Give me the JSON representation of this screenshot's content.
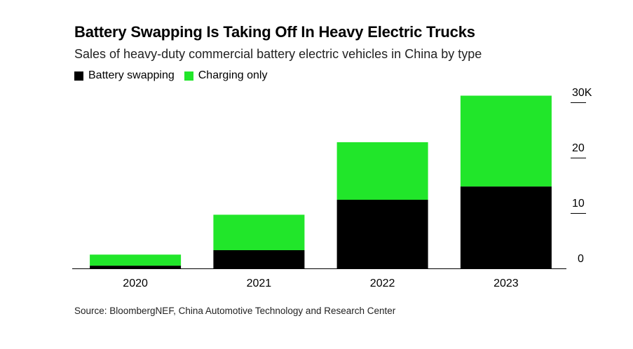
{
  "title": "Battery Swapping Is Taking Off In Heavy Electric Trucks",
  "subtitle": "Sales of heavy-duty commercial battery electric vehicles in China by type",
  "source": "Source: BloombergNEF, China Automotive Technology and Research Center",
  "colors": {
    "battery_swapping": "#000000",
    "charging_only": "#21e62a"
  },
  "chart_data": {
    "type": "bar",
    "stacked": true,
    "categories": [
      "2020",
      "2021",
      "2022",
      "2023"
    ],
    "series": [
      {
        "name": "Battery swapping",
        "values": [
          0.5,
          3.3,
          12.4,
          14.8
        ]
      },
      {
        "name": "Charging only",
        "values": [
          2.0,
          6.4,
          10.4,
          16.4
        ]
      }
    ],
    "ylim": [
      0,
      30
    ],
    "yticks": [
      0,
      10,
      20,
      30
    ],
    "ytick_labels": [
      "0",
      "10",
      "20",
      "30K"
    ],
    "y_axis_side": "right",
    "legend_position": "top-left",
    "grid": false
  }
}
